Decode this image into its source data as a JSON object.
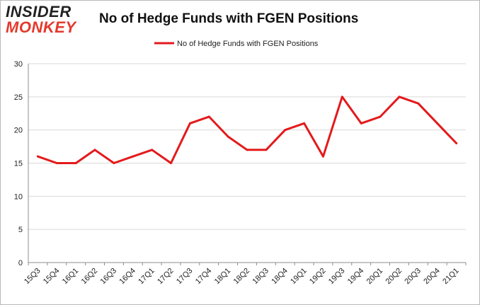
{
  "logo": {
    "line1": "INSIDER",
    "line2": "MONKEY"
  },
  "colors": {
    "series": "#e31a1c",
    "grid": "#d9d9d9",
    "axis": "#8c8c8c",
    "logo_red": "#e33a2c",
    "logo_dark": "#222222"
  },
  "chart_data": {
    "type": "line",
    "title": "No of Hedge Funds with FGEN Positions",
    "xlabel": "",
    "ylabel": "",
    "ylim": [
      0,
      30
    ],
    "yticks": [
      0,
      5,
      10,
      15,
      20,
      25,
      30
    ],
    "grid": true,
    "legend_position": "top-center",
    "categories": [
      "15Q3",
      "15Q4",
      "16Q1",
      "16Q2",
      "16Q3",
      "16Q4",
      "17Q1",
      "17Q2",
      "17Q3",
      "17Q4",
      "18Q1",
      "18Q2",
      "18Q3",
      "18Q4",
      "19Q1",
      "19Q2",
      "19Q3",
      "19Q4",
      "20Q1",
      "20Q2",
      "20Q3",
      "20Q4",
      "21Q1"
    ],
    "series": [
      {
        "name": "No of Hedge Funds with FGEN Positions",
        "values": [
          16,
          15,
          15,
          17,
          15,
          16,
          17,
          15,
          21,
          22,
          19,
          17,
          17,
          20,
          21,
          16,
          25,
          21,
          22,
          25,
          24,
          21,
          18
        ]
      }
    ]
  }
}
